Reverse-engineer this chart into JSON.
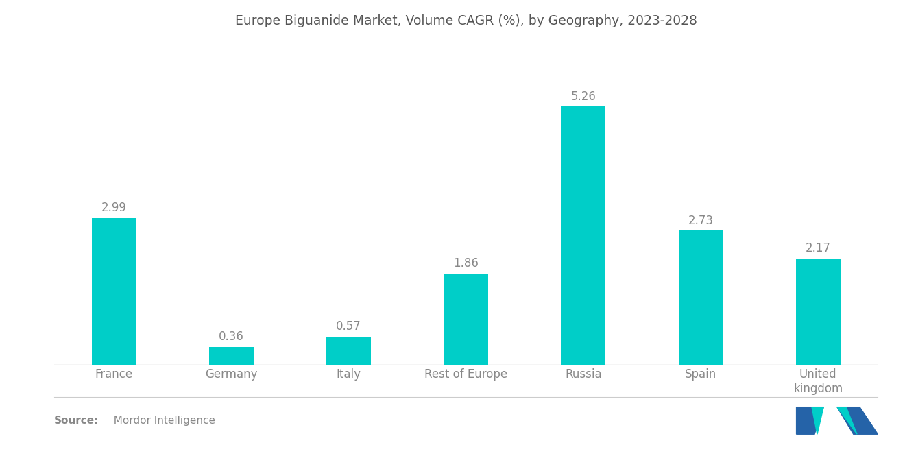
{
  "title": "Europe Biguanide Market, Volume CAGR (%), by Geography, 2023-2028",
  "categories": [
    "France",
    "Germany",
    "Italy",
    "Rest of Europe",
    "Russia",
    "Spain",
    "United\nkingdom"
  ],
  "values": [
    2.99,
    0.36,
    0.57,
    1.86,
    5.26,
    2.73,
    2.17
  ],
  "bar_color": "#00CEC8",
  "background_color": "#ffffff",
  "title_fontsize": 13.5,
  "value_fontsize": 12,
  "tick_fontsize": 12,
  "text_color": "#888888",
  "title_color": "#555555",
  "source_bold": "Source:",
  "source_text": "  Mordor Intelligence",
  "ylim": [
    0,
    6.5
  ],
  "bar_width": 0.38
}
